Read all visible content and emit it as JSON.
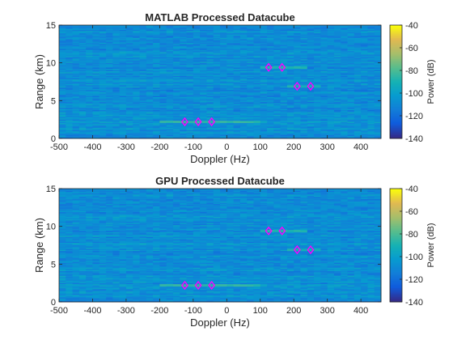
{
  "chart_data": [
    {
      "type": "heatmap",
      "title": "MATLAB Processed Datacube",
      "xlabel": "Doppler (Hz)",
      "ylabel": "Range (km)",
      "xlim": [
        -500,
        460
      ],
      "ylim": [
        0,
        15
      ],
      "xticks": [
        -500,
        -400,
        -300,
        -200,
        -100,
        0,
        100,
        200,
        300,
        400
      ],
      "yticks": [
        0,
        5,
        10,
        15
      ],
      "colorbar": {
        "label": "Power (dB)",
        "limits": [
          -140,
          -40
        ],
        "ticks": [
          -140,
          -120,
          -100,
          -80,
          -60,
          -40
        ]
      },
      "background_power_db": -108,
      "streaks": [
        {
          "range_km": 2.2,
          "doppler_from": -200,
          "doppler_to": 100,
          "power_db": -85
        },
        {
          "range_km": 9.4,
          "doppler_from": 110,
          "doppler_to": 240,
          "power_db": -88
        },
        {
          "range_km": 6.9,
          "doppler_from": 190,
          "doppler_to": 280,
          "power_db": -90
        }
      ],
      "detections": [
        {
          "doppler_hz": -125,
          "range_km": 2.2
        },
        {
          "doppler_hz": -85,
          "range_km": 2.2
        },
        {
          "doppler_hz": -45,
          "range_km": 2.2
        },
        {
          "doppler_hz": 125,
          "range_km": 9.4
        },
        {
          "doppler_hz": 165,
          "range_km": 9.4
        },
        {
          "doppler_hz": 210,
          "range_km": 6.9
        },
        {
          "doppler_hz": 250,
          "range_km": 6.9
        }
      ]
    },
    {
      "type": "heatmap",
      "title": "GPU Processed Datacube",
      "xlabel": "Doppler (Hz)",
      "ylabel": "Range (km)",
      "xlim": [
        -500,
        460
      ],
      "ylim": [
        0,
        15
      ],
      "xticks": [
        -500,
        -400,
        -300,
        -200,
        -100,
        0,
        100,
        200,
        300,
        400
      ],
      "yticks": [
        0,
        5,
        10,
        15
      ],
      "colorbar": {
        "label": "Power (dB)",
        "limits": [
          -140,
          -40
        ],
        "ticks": [
          -140,
          -120,
          -100,
          -80,
          -60,
          -40
        ]
      },
      "background_power_db": -108,
      "streaks": [
        {
          "range_km": 2.2,
          "doppler_from": -200,
          "doppler_to": 100,
          "power_db": -85
        },
        {
          "range_km": 9.4,
          "doppler_from": 110,
          "doppler_to": 240,
          "power_db": -88
        },
        {
          "range_km": 6.9,
          "doppler_from": 190,
          "doppler_to": 280,
          "power_db": -90
        }
      ],
      "detections": [
        {
          "doppler_hz": -125,
          "range_km": 2.2
        },
        {
          "doppler_hz": -85,
          "range_km": 2.2
        },
        {
          "doppler_hz": -45,
          "range_km": 2.2
        },
        {
          "doppler_hz": 125,
          "range_km": 9.4
        },
        {
          "doppler_hz": 165,
          "range_km": 9.4
        },
        {
          "doppler_hz": 210,
          "range_km": 6.9
        },
        {
          "doppler_hz": 250,
          "range_km": 6.9
        }
      ]
    }
  ],
  "colors": {
    "detection_marker": "#ff00ff",
    "axis": "#262626"
  }
}
